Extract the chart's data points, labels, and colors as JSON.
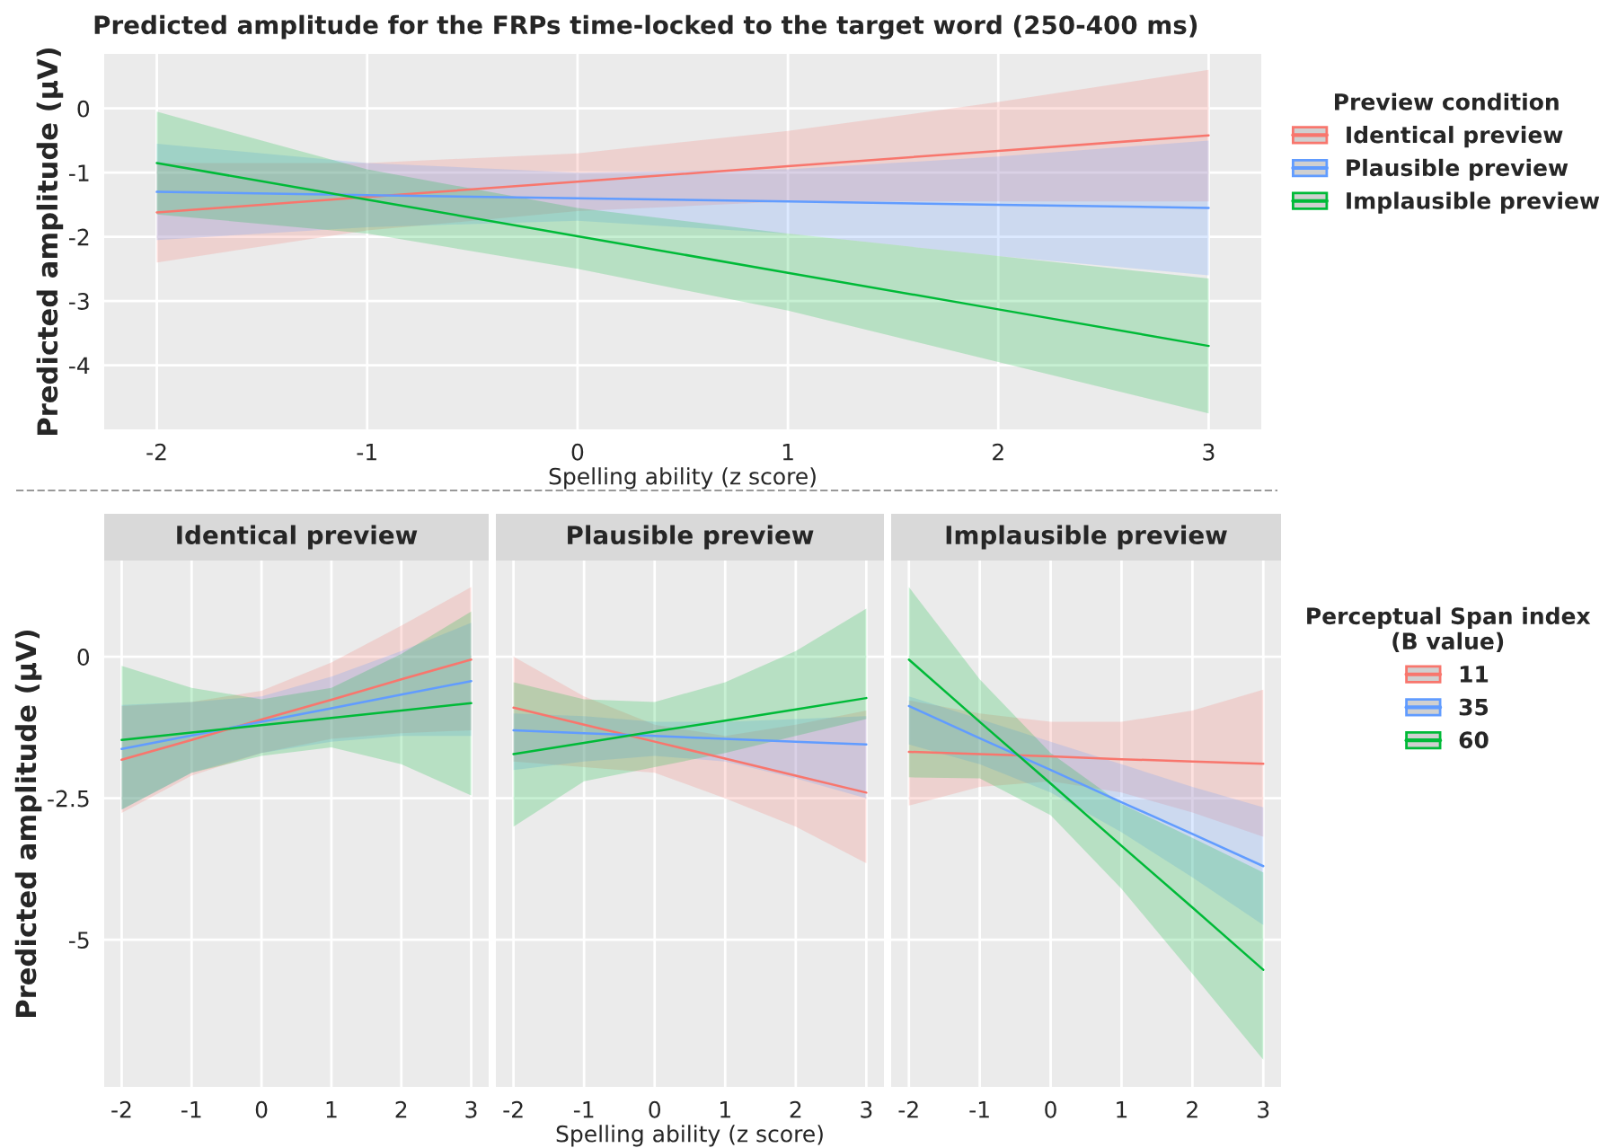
{
  "chart_data": [
    {
      "type": "line",
      "title": "Predicted amplitude for the FRPs time-locked to the target word (250-400 ms)",
      "xlabel": "Spelling ability (z score)",
      "ylabel": "Predicted amplitude (µV)",
      "legend_title": "Preview condition",
      "legend": "right",
      "grid": true,
      "xlim": [
        -2.25,
        3.25
      ],
      "ylim": [
        -5.0,
        0.85
      ],
      "xticks": [
        -2,
        -1,
        0,
        1,
        2,
        3
      ],
      "yticks": [
        0,
        -1,
        -2,
        -3,
        -4
      ],
      "x": [
        -2,
        -1,
        0,
        1,
        2,
        3
      ],
      "series": [
        {
          "name": "Identical preview",
          "color": "#f8766d",
          "values": [
            -1.62,
            -1.38,
            -1.14,
            -0.9,
            -0.66,
            -0.42
          ],
          "lower": [
            -2.4,
            -1.9,
            -1.6,
            -1.45,
            -1.45,
            -1.45
          ],
          "upper": [
            -0.85,
            -0.85,
            -0.7,
            -0.35,
            0.1,
            0.6
          ]
        },
        {
          "name": "Plausible preview",
          "color": "#619cff",
          "values": [
            -1.3,
            -1.35,
            -1.4,
            -1.45,
            -1.5,
            -1.55
          ],
          "lower": [
            -2.05,
            -1.85,
            -1.75,
            -1.95,
            -2.3,
            -2.6
          ],
          "upper": [
            -0.55,
            -0.85,
            -1.0,
            -0.95,
            -0.75,
            -0.5
          ]
        },
        {
          "name": "Implausible preview",
          "color": "#00ba38",
          "values": [
            -0.85,
            -1.42,
            -1.99,
            -2.56,
            -3.13,
            -3.7
          ],
          "lower": [
            -1.65,
            -1.95,
            -2.5,
            -3.15,
            -3.95,
            -4.75
          ],
          "upper": [
            -0.05,
            -0.95,
            -1.55,
            -1.95,
            -2.3,
            -2.65
          ]
        }
      ]
    },
    {
      "type": "line",
      "title": "Identical preview",
      "ylabel": "Predicted amplitude (µV)",
      "grid": true,
      "xlim": [
        -2.25,
        3.25
      ],
      "ylim": [
        -7.6,
        1.7
      ],
      "xticks": [
        -2,
        -1,
        0,
        1,
        2,
        3
      ],
      "yticks": [
        0,
        -2.5,
        -5
      ],
      "x": [
        -2,
        -1,
        0,
        1,
        2,
        3
      ],
      "series": [
        {
          "color": "#f8766d",
          "values": [
            -1.82,
            -1.47,
            -1.11,
            -0.76,
            -0.4,
            -0.05
          ],
          "lower": [
            -2.76,
            -2.1,
            -1.7,
            -1.45,
            -1.35,
            -1.3
          ],
          "upper": [
            -0.87,
            -0.8,
            -0.6,
            -0.1,
            0.55,
            1.23
          ]
        },
        {
          "color": "#619cff",
          "values": [
            -1.63,
            -1.39,
            -1.15,
            -0.91,
            -0.67,
            -0.43
          ],
          "lower": [
            -2.7,
            -2.05,
            -1.7,
            -1.5,
            -1.4,
            -1.4
          ],
          "upper": [
            -0.85,
            -0.8,
            -0.7,
            -0.35,
            0.1,
            0.6
          ]
        },
        {
          "color": "#00ba38",
          "values": [
            -1.47,
            -1.34,
            -1.21,
            -1.08,
            -0.95,
            -0.82
          ],
          "lower": [
            -2.7,
            -2.05,
            -1.75,
            -1.6,
            -1.9,
            -2.45
          ],
          "upper": [
            -0.16,
            -0.55,
            -0.75,
            -0.55,
            0.05,
            0.8
          ]
        }
      ]
    },
    {
      "type": "line",
      "title": "Plausible preview",
      "xlabel": "Spelling ability (z score)",
      "grid": true,
      "tick_labels": "x",
      "xlim": [
        -2.25,
        3.25
      ],
      "ylim": [
        -7.6,
        1.7
      ],
      "xticks": [
        -2,
        -1,
        0,
        1,
        2,
        3
      ],
      "yticks": [
        0,
        -2.5,
        -5
      ],
      "x": [
        -2,
        -1,
        0,
        1,
        2,
        3
      ],
      "series": [
        {
          "color": "#f8766d",
          "values": [
            -0.9,
            -1.2,
            -1.5,
            -1.8,
            -2.1,
            -2.4
          ],
          "lower": [
            -1.85,
            -1.95,
            -2.05,
            -2.5,
            -3.0,
            -3.65
          ],
          "upper": [
            0.0,
            -0.7,
            -1.2,
            -1.4,
            -1.2,
            -0.95
          ]
        },
        {
          "color": "#619cff",
          "values": [
            -1.3,
            -1.35,
            -1.4,
            -1.45,
            -1.5,
            -1.55
          ],
          "lower": [
            -2.0,
            -1.85,
            -1.75,
            -1.85,
            -2.15,
            -2.5
          ],
          "upper": [
            -1.0,
            -1.05,
            -1.15,
            -1.15,
            -1.1,
            -1.05
          ]
        },
        {
          "color": "#00ba38",
          "values": [
            -1.72,
            -1.52,
            -1.32,
            -1.13,
            -0.93,
            -0.73
          ],
          "lower": [
            -3.0,
            -2.2,
            -1.95,
            -1.7,
            -1.4,
            -1.1
          ],
          "upper": [
            -0.45,
            -0.75,
            -0.8,
            -0.45,
            0.1,
            0.85
          ]
        }
      ]
    },
    {
      "type": "line",
      "title": "Implausible preview",
      "legend_title": "Perceptual Span index\n(B value)",
      "legend": "right",
      "grid": true,
      "tick_labels": "x",
      "xlim": [
        -2.25,
        3.25
      ],
      "ylim": [
        -7.6,
        1.7
      ],
      "xticks": [
        -2,
        -1,
        0,
        1,
        2,
        3
      ],
      "yticks": [
        0,
        -2.5,
        -5
      ],
      "x": [
        -2,
        -1,
        0,
        1,
        2,
        3
      ],
      "series": [
        {
          "name": "11",
          "color": "#f8766d",
          "values": [
            -1.68,
            -1.72,
            -1.76,
            -1.81,
            -1.85,
            -1.89
          ],
          "lower": [
            -2.63,
            -2.3,
            -2.2,
            -2.4,
            -2.75,
            -3.18
          ],
          "upper": [
            -0.77,
            -1.0,
            -1.15,
            -1.15,
            -0.95,
            -0.58
          ]
        },
        {
          "name": "35",
          "color": "#619cff",
          "values": [
            -0.87,
            -1.44,
            -2.0,
            -2.57,
            -3.13,
            -3.7
          ],
          "lower": [
            -1.55,
            -1.9,
            -2.4,
            -3.1,
            -3.9,
            -4.74
          ],
          "upper": [
            -0.7,
            -1.1,
            -1.5,
            -1.9,
            -2.3,
            -2.66
          ]
        },
        {
          "name": "60",
          "color": "#00ba38",
          "values": [
            -0.05,
            -1.15,
            -2.24,
            -3.34,
            -4.43,
            -5.53
          ],
          "lower": [
            -2.13,
            -2.15,
            -2.8,
            -4.1,
            -5.6,
            -7.12
          ],
          "upper": [
            1.23,
            -0.4,
            -1.7,
            -2.6,
            -3.2,
            -3.81
          ]
        }
      ]
    }
  ]
}
